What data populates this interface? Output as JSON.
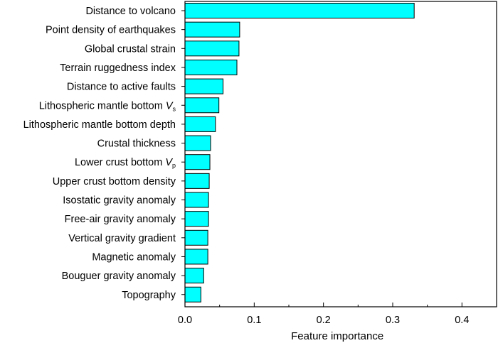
{
  "chart_data": {
    "type": "bar",
    "orientation": "horizontal",
    "title": "",
    "xlabel": "Feature importance",
    "ylabel": "",
    "xlim": [
      0.0,
      0.45
    ],
    "xticks": [
      "0.0",
      "0.1",
      "0.2",
      "0.3",
      "0.4"
    ],
    "bar_color": "#00ffff",
    "bar_edge_color": "#000000",
    "grid": false,
    "categories": [
      {
        "label": "Distance to volcano",
        "value": 0.331
      },
      {
        "label": "Point density of earthquakes",
        "value": 0.079
      },
      {
        "label": "Global crustal strain",
        "value": 0.078
      },
      {
        "label": "Terrain ruggedness index",
        "value": 0.075
      },
      {
        "label": "Distance to active faults",
        "value": 0.055
      },
      {
        "label": "Lithospheric mantle bottom ",
        "italic": "V",
        "sub": "s",
        "value": 0.049
      },
      {
        "label": "Lithospheric mantle bottom depth",
        "value": 0.044
      },
      {
        "label": "Crustal thickness",
        "value": 0.037
      },
      {
        "label": "Lower crust bottom ",
        "italic": "V",
        "sub": "p",
        "value": 0.036
      },
      {
        "label": "Upper crust bottom density",
        "value": 0.035
      },
      {
        "label": "Isostatic gravity anomaly",
        "value": 0.034
      },
      {
        "label": "Free-air gravity anomaly",
        "value": 0.034
      },
      {
        "label": "Vertical gravity gradient",
        "value": 0.033
      },
      {
        "label": "Magnetic anomaly",
        "value": 0.033
      },
      {
        "label": "Bouguer gravity anomaly",
        "value": 0.027
      },
      {
        "label": "Topography",
        "value": 0.023
      }
    ]
  }
}
